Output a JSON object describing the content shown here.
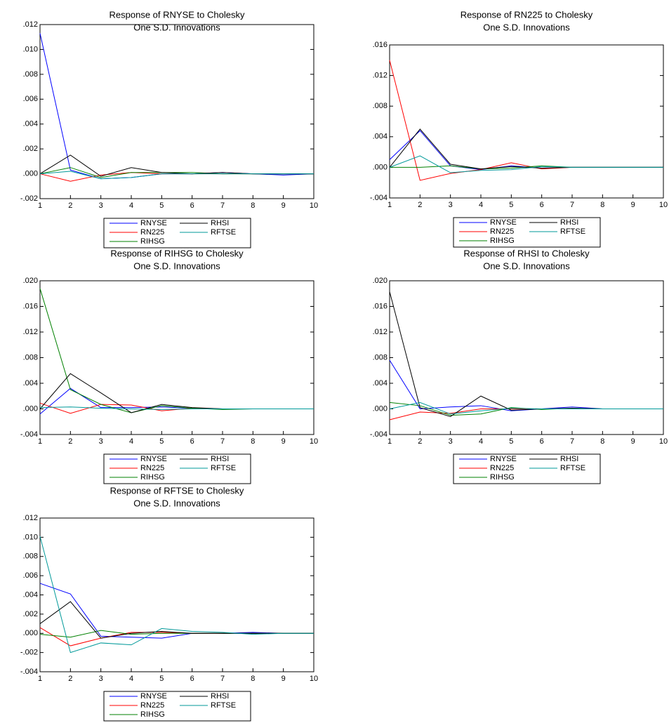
{
  "chart_data": [
    {
      "type": "line",
      "title": "Response of RNYSE to Cholesky",
      "subtitle": "One S.D. Innovations",
      "x": [
        1,
        2,
        3,
        4,
        5,
        6,
        7,
        8,
        9,
        10
      ],
      "xlim": [
        1,
        10
      ],
      "xticks": [
        1,
        2,
        3,
        4,
        5,
        6,
        7,
        8,
        9,
        10
      ],
      "ylim": [
        -0.002,
        0.012
      ],
      "yticks": [
        {
          "value": -0.002,
          "label": "-.002"
        },
        {
          "value": 0,
          "label": ".000"
        },
        {
          "value": 0.002,
          "label": ".002"
        },
        {
          "value": 0.004,
          "label": ".004"
        },
        {
          "value": 0.006,
          "label": ".006"
        },
        {
          "value": 0.008,
          "label": ".008"
        },
        {
          "value": 0.01,
          "label": ".010"
        },
        {
          "value": 0.012,
          "label": ".012"
        }
      ],
      "series": [
        {
          "name": "RNYSE",
          "color": "#0000ff",
          "values": [
            0.0113,
            0.0003,
            -0.0004,
            -0.0003,
            0.0,
            0.0,
            0.0001,
            0.0,
            -0.0001,
            0.0
          ]
        },
        {
          "name": "RN225",
          "color": "#ff0000",
          "values": [
            0.0,
            -0.0006,
            -0.0001,
            0.0001,
            0.0,
            0.0,
            0.0,
            0.0,
            0.0,
            0.0
          ]
        },
        {
          "name": "RIHSG",
          "color": "#008000",
          "values": [
            0.0,
            0.0005,
            -0.0003,
            0.0001,
            0.0001,
            0.0001,
            0.0,
            0.0,
            0.0,
            0.0
          ]
        },
        {
          "name": "RHSI",
          "color": "#000000",
          "values": [
            0.0,
            0.0015,
            -0.0002,
            0.0005,
            0.0001,
            0.0,
            0.0001,
            0.0,
            0.0,
            0.0
          ]
        },
        {
          "name": "RFTSE",
          "color": "#009999",
          "values": [
            0.0,
            0.0002,
            -0.0004,
            -0.0003,
            0.0,
            0.0,
            0.0,
            0.0,
            0.0,
            0.0
          ]
        }
      ]
    },
    {
      "type": "line",
      "title": "Response of RN225 to Cholesky",
      "subtitle": "One S.D. Innovations",
      "x": [
        1,
        2,
        3,
        4,
        5,
        6,
        7,
        8,
        9,
        10
      ],
      "xlim": [
        1,
        10
      ],
      "xticks": [
        1,
        2,
        3,
        4,
        5,
        6,
        7,
        8,
        9,
        10
      ],
      "ylim": [
        -0.004,
        0.016
      ],
      "yticks": [
        {
          "value": -0.004,
          "label": "-.004"
        },
        {
          "value": 0,
          "label": ".000"
        },
        {
          "value": 0.004,
          "label": ".004"
        },
        {
          "value": 0.008,
          "label": ".008"
        },
        {
          "value": 0.012,
          "label": ".012"
        },
        {
          "value": 0.016,
          "label": ".016"
        }
      ],
      "series": [
        {
          "name": "RNYSE",
          "color": "#0000ff",
          "values": [
            0.001,
            0.0048,
            0.0002,
            -0.0003,
            0.0002,
            -0.0001,
            0.0,
            0.0,
            0.0,
            0.0
          ]
        },
        {
          "name": "RN225",
          "color": "#ff0000",
          "values": [
            0.014,
            -0.0017,
            -0.0008,
            -0.0003,
            0.0006,
            -0.0002,
            0.0,
            0.0,
            0.0,
            0.0
          ]
        },
        {
          "name": "RIHSG",
          "color": "#008000",
          "values": [
            0.0,
            0.0,
            0.0002,
            -0.0002,
            -0.0001,
            0.0002,
            0.0,
            0.0,
            0.0,
            0.0
          ]
        },
        {
          "name": "RHSI",
          "color": "#000000",
          "values": [
            0.0,
            0.005,
            0.0004,
            -0.0002,
            0.0001,
            -0.0001,
            0.0,
            0.0,
            0.0,
            0.0
          ]
        },
        {
          "name": "RFTSE",
          "color": "#009999",
          "values": [
            0.0,
            0.0015,
            -0.0007,
            -0.0004,
            -0.0003,
            0.0001,
            0.0,
            0.0,
            0.0,
            0.0
          ]
        }
      ]
    },
    {
      "type": "line",
      "title": "Response of RIHSG to Cholesky",
      "subtitle": "One S.D. Innovations",
      "x": [
        1,
        2,
        3,
        4,
        5,
        6,
        7,
        8,
        9,
        10
      ],
      "xlim": [
        1,
        10
      ],
      "xticks": [
        1,
        2,
        3,
        4,
        5,
        6,
        7,
        8,
        9,
        10
      ],
      "ylim": [
        -0.004,
        0.02
      ],
      "yticks": [
        {
          "value": -0.004,
          "label": "-.004"
        },
        {
          "value": 0,
          "label": ".000"
        },
        {
          "value": 0.004,
          "label": ".004"
        },
        {
          "value": 0.008,
          "label": ".008"
        },
        {
          "value": 0.012,
          "label": ".012"
        },
        {
          "value": 0.016,
          "label": ".016"
        },
        {
          "value": 0.02,
          "label": ".020"
        }
      ],
      "series": [
        {
          "name": "RNYSE",
          "color": "#0000ff",
          "values": [
            -0.0008,
            0.0032,
            0.0002,
            0.0002,
            0.0003,
            0.0001,
            0.0,
            0.0,
            0.0,
            0.0
          ]
        },
        {
          "name": "RN225",
          "color": "#ff0000",
          "values": [
            0.0009,
            -0.0007,
            0.0007,
            0.0006,
            -0.0003,
            0.0001,
            0.0,
            0.0,
            0.0,
            0.0
          ]
        },
        {
          "name": "RIHSG",
          "color": "#008000",
          "values": [
            0.0188,
            0.003,
            0.0007,
            -0.0006,
            0.0005,
            0.0001,
            -0.0001,
            0.0,
            0.0,
            0.0
          ]
        },
        {
          "name": "RHSI",
          "color": "#000000",
          "values": [
            0.0,
            0.0055,
            0.0025,
            -0.0006,
            0.0007,
            0.0002,
            0.0,
            0.0,
            0.0,
            0.0
          ]
        },
        {
          "name": "RFTSE",
          "color": "#009999",
          "values": [
            0.0002,
            0.0003,
            0.0001,
            0.0,
            -0.0001,
            0.0,
            0.0,
            0.0,
            0.0,
            0.0
          ]
        }
      ]
    },
    {
      "type": "line",
      "title": "Response of RHSI to Cholesky",
      "subtitle": "One S.D. Innovations",
      "x": [
        1,
        2,
        3,
        4,
        5,
        6,
        7,
        8,
        9,
        10
      ],
      "xlim": [
        1,
        10
      ],
      "xticks": [
        1,
        2,
        3,
        4,
        5,
        6,
        7,
        8,
        9,
        10
      ],
      "ylim": [
        -0.004,
        0.02
      ],
      "yticks": [
        {
          "value": -0.004,
          "label": "-.004"
        },
        {
          "value": 0,
          "label": ".000"
        },
        {
          "value": 0.004,
          "label": ".004"
        },
        {
          "value": 0.008,
          "label": ".008"
        },
        {
          "value": 0.012,
          "label": ".012"
        },
        {
          "value": 0.016,
          "label": ".016"
        },
        {
          "value": 0.02,
          "label": ".020"
        }
      ],
      "series": [
        {
          "name": "RNYSE",
          "color": "#0000ff",
          "values": [
            0.0076,
            0.0,
            0.0003,
            0.0005,
            -0.0003,
            0.0,
            0.0003,
            0.0,
            0.0,
            0.0
          ]
        },
        {
          "name": "RN225",
          "color": "#ff0000",
          "values": [
            -0.0017,
            -0.0005,
            -0.0007,
            0.0,
            0.0,
            0.0,
            0.0,
            0.0,
            0.0,
            0.0
          ]
        },
        {
          "name": "RIHSG",
          "color": "#008000",
          "values": [
            0.001,
            0.0005,
            -0.001,
            -0.0008,
            0.0002,
            -0.0001,
            0.0001,
            0.0,
            0.0,
            0.0
          ]
        },
        {
          "name": "RHSI",
          "color": "#000000",
          "values": [
            0.0183,
            0.0002,
            -0.0012,
            0.002,
            -0.0002,
            0.0,
            0.0001,
            0.0,
            0.0,
            0.0
          ]
        },
        {
          "name": "RFTSE",
          "color": "#009999",
          "values": [
            0.0,
            0.001,
            -0.0008,
            -0.0003,
            0.0001,
            0.0,
            0.0,
            0.0,
            0.0,
            0.0
          ]
        }
      ]
    },
    {
      "type": "line",
      "title": "Response of RFTSE to Cholesky",
      "subtitle": "One S.D. Innovations",
      "x": [
        1,
        2,
        3,
        4,
        5,
        6,
        7,
        8,
        9,
        10
      ],
      "xlim": [
        1,
        10
      ],
      "xticks": [
        1,
        2,
        3,
        4,
        5,
        6,
        7,
        8,
        9,
        10
      ],
      "ylim": [
        -0.004,
        0.012
      ],
      "yticks": [
        {
          "value": -0.004,
          "label": "-.004"
        },
        {
          "value": -0.002,
          "label": "-.002"
        },
        {
          "value": 0,
          "label": ".000"
        },
        {
          "value": 0.002,
          "label": ".002"
        },
        {
          "value": 0.004,
          "label": ".004"
        },
        {
          "value": 0.006,
          "label": ".006"
        },
        {
          "value": 0.008,
          "label": ".008"
        },
        {
          "value": 0.01,
          "label": ".010"
        },
        {
          "value": 0.012,
          "label": ".012"
        }
      ],
      "series": [
        {
          "name": "RNYSE",
          "color": "#0000ff",
          "values": [
            0.0052,
            0.0041,
            -0.0003,
            -0.0004,
            -0.0005,
            0.0,
            0.0,
            0.0001,
            0.0,
            0.0
          ]
        },
        {
          "name": "RN225",
          "color": "#ff0000",
          "values": [
            0.0006,
            -0.0013,
            -0.0005,
            0.0001,
            0.0001,
            0.0,
            0.0,
            0.0,
            0.0,
            0.0
          ]
        },
        {
          "name": "RIHSG",
          "color": "#008000",
          "values": [
            -0.0001,
            -0.0004,
            0.0003,
            -0.0001,
            0.0,
            0.0,
            0.0,
            0.0,
            0.0,
            0.0
          ]
        },
        {
          "name": "RHSI",
          "color": "#000000",
          "values": [
            0.001,
            0.0033,
            -0.0005,
            0.0,
            0.0002,
            0.0,
            0.0,
            0.0,
            0.0,
            0.0
          ]
        },
        {
          "name": "RFTSE",
          "color": "#009999",
          "values": [
            0.0101,
            -0.002,
            -0.001,
            -0.0012,
            0.0005,
            0.0002,
            0.0001,
            -0.0001,
            0.0,
            0.0
          ]
        }
      ]
    }
  ]
}
